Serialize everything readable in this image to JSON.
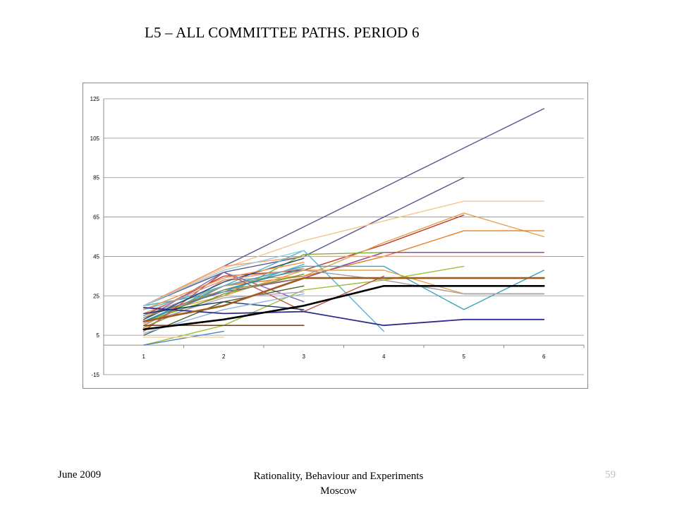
{
  "slide": {
    "title": "L5 – ALL COMMITTEE PATHS. PERIOD 6",
    "footer_left": "June 2009",
    "footer_center_line1": "Rationality, Behaviour and Experiments",
    "footer_center_line2": "Moscow",
    "page_number": "59"
  },
  "chart_data": {
    "type": "line",
    "title": "",
    "xlabel": "",
    "ylabel": "",
    "categories": [
      "1",
      "2",
      "3",
      "4",
      "5",
      "6"
    ],
    "x": [
      1,
      2,
      3,
      4,
      5,
      6
    ],
    "yticks": [
      125,
      105,
      85,
      65,
      45,
      25,
      5,
      -15
    ],
    "ylim": [
      -15,
      125
    ],
    "xlim": [
      0.5,
      6.5
    ],
    "grid": true,
    "legend": "none",
    "series": [
      {
        "color": "#5a5a8c",
        "width": 1.4,
        "values": [
          20,
          40,
          60,
          80,
          100,
          120
        ]
      },
      {
        "color": "#5a5a8c",
        "width": 1.4,
        "values": [
          20,
          37,
          45,
          65,
          85,
          null
        ]
      },
      {
        "color": "#f7c48c",
        "width": 1.4,
        "values": [
          20,
          39,
          53,
          63,
          73,
          73
        ]
      },
      {
        "color": "#c0392b",
        "width": 1.4,
        "values": [
          15,
          35,
          38,
          51,
          66,
          null
        ]
      },
      {
        "color": "#e3a04a",
        "width": 1.4,
        "values": [
          8,
          33,
          35,
          52,
          67,
          55
        ]
      },
      {
        "color": "#e67e22",
        "width": 1.4,
        "values": [
          10,
          30,
          35,
          45,
          58,
          58
        ]
      },
      {
        "color": "#8e3e8e",
        "width": 1.4,
        "values": [
          15,
          27,
          34,
          47,
          47,
          47
        ]
      },
      {
        "color": "#ff9966",
        "width": 1.4,
        "values": [
          20,
          40,
          45,
          45,
          45,
          45
        ]
      },
      {
        "color": "#7bb03a",
        "width": 1.4,
        "values": [
          12,
          25,
          46,
          47,
          null,
          null
        ]
      },
      {
        "color": "#4fb8d0",
        "width": 1.4,
        "values": [
          18,
          30,
          48,
          7,
          null,
          null
        ]
      },
      {
        "color": "#3aa6bb",
        "width": 1.4,
        "values": [
          12,
          30,
          40,
          40,
          18,
          38
        ]
      },
      {
        "color": "#e8a040",
        "width": 1.4,
        "values": [
          15,
          25,
          38,
          38,
          26,
          26
        ]
      },
      {
        "color": "#a0a0a0",
        "width": 1.4,
        "values": [
          15,
          30,
          38,
          33,
          26,
          26
        ]
      },
      {
        "color": "#a05a1e",
        "width": 2.6,
        "values": [
          12,
          20,
          34,
          34,
          34,
          34
        ]
      },
      {
        "color": "#000000",
        "width": 2.6,
        "values": [
          8,
          13,
          20,
          30,
          30,
          30
        ]
      },
      {
        "color": "#2e2e8c",
        "width": 1.8,
        "values": [
          19,
          16,
          17,
          10,
          13,
          13
        ]
      },
      {
        "color": "#9bc23c",
        "width": 1.4,
        "values": [
          0,
          10,
          28,
          33,
          40,
          null
        ]
      },
      {
        "color": "#8b4513",
        "width": 1.6,
        "values": [
          10,
          10,
          10,
          null,
          null,
          null
        ]
      },
      {
        "color": "#4f81bd",
        "width": 1.4,
        "values": [
          0,
          7,
          null,
          null,
          null,
          null
        ]
      },
      {
        "color": "#f9d49a",
        "width": 1.4,
        "values": [
          4,
          4,
          null,
          null,
          null,
          null
        ]
      },
      {
        "color": "#c0504d",
        "width": 1.4,
        "values": [
          7,
          37,
          17,
          35,
          null,
          null
        ]
      },
      {
        "color": "#8064a2",
        "width": 1.4,
        "values": [
          13,
          37,
          22,
          null,
          null,
          null
        ]
      },
      {
        "color": "#4bacc6",
        "width": 1.4,
        "values": [
          20,
          27,
          41,
          null,
          null,
          null
        ]
      },
      {
        "color": "#1f497d",
        "width": 1.4,
        "values": [
          13,
          32,
          44,
          null,
          null,
          null
        ]
      },
      {
        "color": "#93cddd",
        "width": 1.4,
        "values": [
          20,
          38,
          48,
          null,
          null,
          null
        ]
      },
      {
        "color": "#31859c",
        "width": 1.4,
        "values": [
          12,
          28,
          39,
          null,
          null,
          null
        ]
      },
      {
        "color": "#d99694",
        "width": 1.4,
        "values": [
          16,
          33,
          39,
          null,
          null,
          null
        ]
      },
      {
        "color": "#76923c",
        "width": 1.4,
        "values": [
          9,
          26,
          36,
          null,
          null,
          null
        ]
      },
      {
        "color": "#948a54",
        "width": 1.4,
        "values": [
          14,
          28,
          34,
          null,
          null,
          null
        ]
      },
      {
        "color": "#f79646",
        "width": 1.4,
        "values": [
          18,
          34,
          42,
          null,
          null,
          null
        ]
      },
      {
        "color": "#4f6228",
        "width": 1.4,
        "values": [
          5,
          22,
          30,
          null,
          null,
          null
        ]
      },
      {
        "color": "#b3a2c7",
        "width": 1.4,
        "values": [
          11,
          24,
          27,
          null,
          null,
          null
        ]
      },
      {
        "color": "#17375e",
        "width": 1.4,
        "values": [
          16,
          22,
          18,
          null,
          null,
          null
        ]
      },
      {
        "color": "#8db3e2",
        "width": 1.4,
        "values": [
          6,
          18,
          26,
          null,
          null,
          null
        ]
      }
    ]
  }
}
